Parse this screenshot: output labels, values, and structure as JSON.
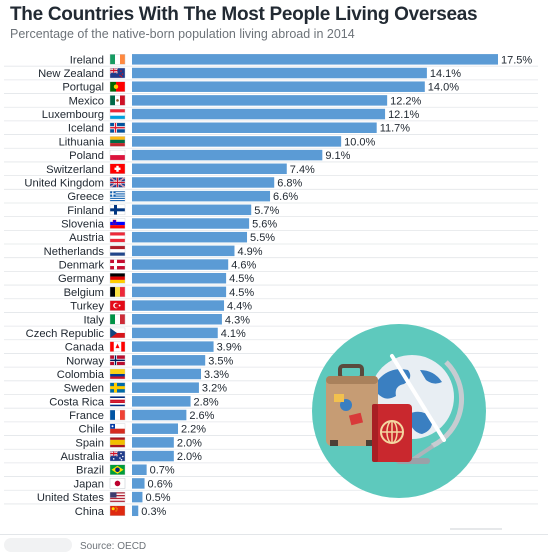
{
  "header": {
    "title": "The Countries With The Most People Living Overseas",
    "subtitle": "Percentage of the native-born population living abroad in 2014"
  },
  "footer": {
    "source": "Source: OECD"
  },
  "colors": {
    "bar": "#5b9bd5",
    "label": "#222a33",
    "gridline": "#e3e6e9",
    "illustration_circle": "#5ec9bd"
  },
  "chart_data": {
    "type": "bar",
    "orientation": "horizontal",
    "title": "The Countries With The Most People Living Overseas",
    "subtitle": "Percentage of the native-born population living abroad in 2014",
    "value_suffix": "%",
    "categories": [
      "Ireland",
      "New Zealand",
      "Portugal",
      "Mexico",
      "Luxembourg",
      "Iceland",
      "Lithuania",
      "Poland",
      "Switzerland",
      "United Kingdom",
      "Greece",
      "Finland",
      "Slovenia",
      "Austria",
      "Netherlands",
      "Denmark",
      "Germany",
      "Belgium",
      "Turkey",
      "Italy",
      "Czech Republic",
      "Canada",
      "Norway",
      "Colombia",
      "Sweden",
      "Costa Rica",
      "France",
      "Chile",
      "Spain",
      "Australia",
      "Brazil",
      "Japan",
      "United States",
      "China"
    ],
    "values": [
      17.5,
      14.1,
      14.0,
      12.2,
      12.1,
      11.7,
      10.0,
      9.1,
      7.4,
      6.8,
      6.6,
      5.7,
      5.6,
      5.5,
      4.9,
      4.6,
      4.5,
      4.5,
      4.4,
      4.3,
      4.1,
      3.9,
      3.5,
      3.3,
      3.2,
      2.8,
      2.6,
      2.2,
      2.0,
      2.0,
      0.7,
      0.6,
      0.5,
      0.3
    ],
    "value_labels": [
      "17.5%",
      "14.1%",
      "14.0%",
      "12.2%",
      "12.1%",
      "11.7%",
      "10.0%",
      "9.1%",
      "7.4%",
      "6.8%",
      "6.6%",
      "5.7%",
      "5.6%",
      "5.5%",
      "4.9%",
      "4.6%",
      "4.5%",
      "4.5%",
      "4.4%",
      "4.3%",
      "4.1%",
      "3.9%",
      "3.5%",
      "3.3%",
      "3.2%",
      "2.8%",
      "2.6%",
      "2.2%",
      "2.0%",
      "2.0%",
      "0.7%",
      "0.6%",
      "0.5%",
      "0.3%"
    ],
    "flags": [
      "ireland-flag-icon",
      "new-zealand-flag-icon",
      "portugal-flag-icon",
      "mexico-flag-icon",
      "luxembourg-flag-icon",
      "iceland-flag-icon",
      "lithuania-flag-icon",
      "poland-flag-icon",
      "switzerland-flag-icon",
      "united-kingdom-flag-icon",
      "greece-flag-icon",
      "finland-flag-icon",
      "slovenia-flag-icon",
      "austria-flag-icon",
      "netherlands-flag-icon",
      "denmark-flag-icon",
      "germany-flag-icon",
      "belgium-flag-icon",
      "turkey-flag-icon",
      "italy-flag-icon",
      "czech-republic-flag-icon",
      "canada-flag-icon",
      "norway-flag-icon",
      "colombia-flag-icon",
      "sweden-flag-icon",
      "costa-rica-flag-icon",
      "france-flag-icon",
      "chile-flag-icon",
      "spain-flag-icon",
      "australia-flag-icon",
      "brazil-flag-icon",
      "japan-flag-icon",
      "united-states-flag-icon",
      "china-flag-icon"
    ],
    "xlim": [
      0,
      17.5
    ],
    "grid": true,
    "legend": "none"
  },
  "illustration": {
    "icons": [
      "suitcase-icon",
      "globe-icon",
      "passport-icon"
    ]
  }
}
